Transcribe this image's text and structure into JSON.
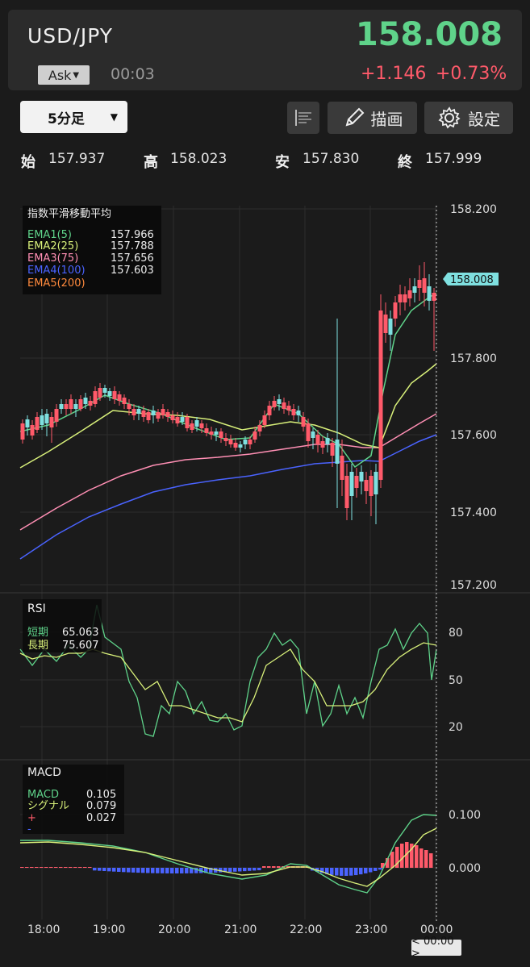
{
  "header": {
    "pair": "USD/JPY",
    "price": "158.008",
    "side_select": "Ask",
    "timer": "00:03",
    "change": "+1.146",
    "change_pct": "+0.73%",
    "colors": {
      "up": "#5fd38a",
      "down": "#ff5a6a"
    }
  },
  "toolbar": {
    "timeframe": "5分足",
    "draw_label": "描画",
    "settings_label": "設定",
    "icons": [
      "list-icon",
      "pencil-icon",
      "gear-icon"
    ]
  },
  "ohlc": {
    "open_label": "始",
    "open": "157.937",
    "high_label": "高",
    "high": "158.023",
    "low_label": "安",
    "low": "157.830",
    "close_label": "終",
    "close": "157.999"
  },
  "main_chart": {
    "legend_title": "指数平滑移動平均",
    "ema": [
      {
        "name": "EMA1(5)",
        "value": "157.966",
        "color": "#5fd38a"
      },
      {
        "name": "EMA2(25)",
        "value": "157.788",
        "color": "#d8f07a"
      },
      {
        "name": "EMA3(75)",
        "value": "157.656",
        "color": "#ff8fb4"
      },
      {
        "name": "EMA4(100)",
        "value": "157.603",
        "color": "#4a63ff"
      },
      {
        "name": "EMA5(200)",
        "value": "",
        "color": "#ff8a3d"
      }
    ],
    "y_ticks": [
      "158.200",
      "157.800",
      "157.600",
      "157.400",
      "157.200"
    ],
    "price_tag": "158.008"
  },
  "rsi": {
    "title": "RSI",
    "short_label": "短期",
    "short_value": "65.063",
    "long_label": "長期",
    "long_value": "75.607",
    "y_ticks": [
      "80",
      "50",
      "20"
    ]
  },
  "macd": {
    "title": "MACD",
    "macd_label": "MACD",
    "macd_value": "0.105",
    "signal_label": "シグナル",
    "signal_value": "0.079",
    "plus_label": "+",
    "plus_value": "0.027",
    "minus_label": "-",
    "y_ticks": [
      "0.100",
      "0.000"
    ]
  },
  "x_axis": {
    "ticks": [
      "18:00",
      "19:00",
      "20:00",
      "21:00",
      "22:00",
      "23:00",
      "00:00"
    ],
    "cursor_time": "< 00:00 >"
  }
}
